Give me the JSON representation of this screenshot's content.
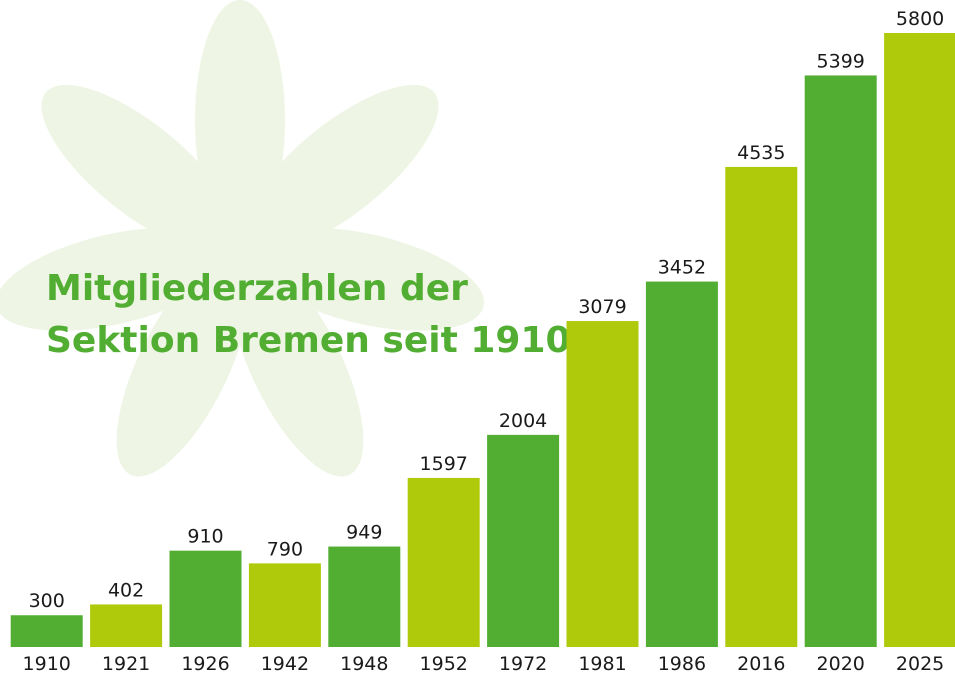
{
  "chart_data": {
    "type": "bar",
    "title": [
      "Mitgliederzahlen der",
      "Sektion Bremen seit 1910"
    ],
    "categories": [
      "1910",
      "1921",
      "1926",
      "1942",
      "1948",
      "1952",
      "1972",
      "1981",
      "1986",
      "2016",
      "2020",
      "2025"
    ],
    "values": [
      300,
      402,
      910,
      790,
      949,
      1597,
      2004,
      3079,
      3452,
      4535,
      5399,
      5800
    ],
    "colors": [
      "#52ae32",
      "#afca0b",
      "#52ae32",
      "#afca0b",
      "#52ae32",
      "#afca0b",
      "#52ae32",
      "#afca0b",
      "#52ae32",
      "#afca0b",
      "#52ae32",
      "#afca0b"
    ]
  }
}
